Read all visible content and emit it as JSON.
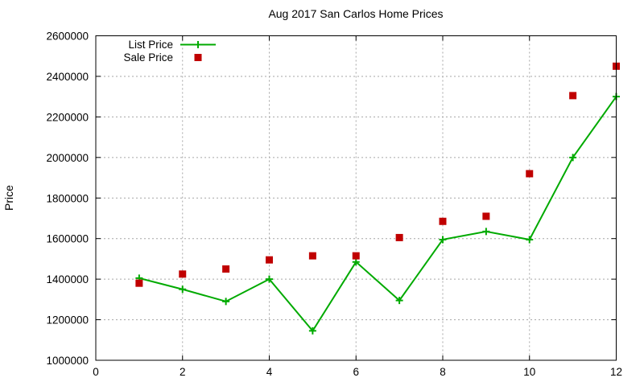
{
  "chart_data": {
    "type": "line",
    "title": "Aug 2017 San Carlos Home Prices",
    "xlabel": "",
    "ylabel": "Price",
    "x": [
      1,
      2,
      3,
      4,
      5,
      6,
      7,
      8,
      9,
      10,
      11,
      12
    ],
    "series": [
      {
        "name": "List Price",
        "style": "line-with-plus-markers",
        "color": "#00aa00",
        "values": [
          1405000,
          1350000,
          1290000,
          1400000,
          1145000,
          1485000,
          1295000,
          1595000,
          1635000,
          1595000,
          2000000,
          2300000
        ]
      },
      {
        "name": "Sale Price",
        "style": "filled-square-markers",
        "color": "#c00000",
        "values": [
          1380000,
          1425000,
          1450000,
          1495000,
          1515000,
          1515000,
          1605000,
          1685000,
          1710000,
          1920000,
          2305000,
          2450000
        ]
      }
    ],
    "xlim": [
      0,
      12
    ],
    "ylim": [
      1000000,
      2600000
    ],
    "x_ticks": [
      0,
      2,
      4,
      6,
      8,
      10,
      12
    ],
    "y_ticks": [
      1000000,
      1200000,
      1400000,
      1600000,
      1800000,
      2000000,
      2200000,
      2400000,
      2600000
    ],
    "grid": true,
    "legend_position": "inside-top-left"
  },
  "colors": {
    "background": "#ffffff",
    "axis": "#000000",
    "grid": "#a6a6a6",
    "list_price": "#00aa00",
    "sale_price": "#c00000"
  }
}
